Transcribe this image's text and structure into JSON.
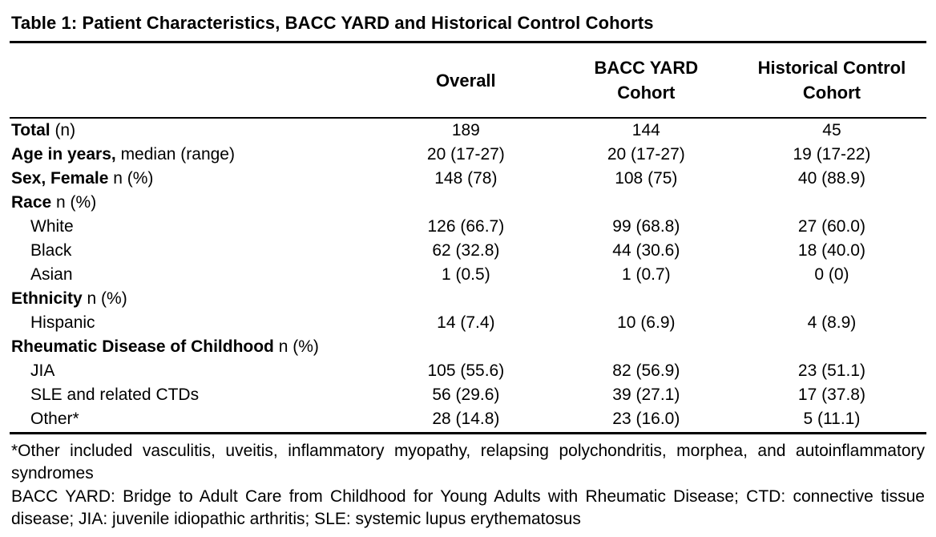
{
  "table": {
    "title": "Table 1: Patient Characteristics, BACC YARD and Historical Control Cohorts",
    "columns": [
      "Overall",
      "BACC YARD Cohort",
      "Historical Control Cohort"
    ],
    "rows": [
      {
        "bold": "Total",
        "rest": " (n)",
        "values": [
          "189",
          "144",
          "45"
        ]
      },
      {
        "bold": "Age in years,",
        "rest": " median (range)",
        "values": [
          "20 (17-27)",
          "20 (17-27)",
          "19 (17-22)"
        ]
      },
      {
        "bold": "Sex, Female",
        "rest": " n (%)",
        "values": [
          "148 (78)",
          "108 (75)",
          "40 (88.9)"
        ]
      },
      {
        "bold": "Race",
        "rest": " n (%)",
        "values": [
          "",
          "",
          ""
        ]
      },
      {
        "bold": "",
        "rest": "White",
        "values": [
          "126 (66.7)",
          "99 (68.8)",
          "27 (60.0)"
        ]
      },
      {
        "bold": "",
        "rest": "Black",
        "values": [
          "62 (32.8)",
          "44 (30.6)",
          "18 (40.0)"
        ]
      },
      {
        "bold": "",
        "rest": "Asian",
        "values": [
          "1 (0.5)",
          "1 (0.7)",
          "0 (0)"
        ]
      },
      {
        "bold": "Ethnicity",
        "rest": " n (%)",
        "values": [
          "",
          "",
          ""
        ]
      },
      {
        "bold": "",
        "rest": "Hispanic",
        "values": [
          "14 (7.4)",
          "10 (6.9)",
          "4 (8.9)"
        ]
      },
      {
        "bold": "Rheumatic Disease of Childhood",
        "rest": " n (%)",
        "values": [
          "",
          "",
          ""
        ]
      },
      {
        "bold": "",
        "rest": "JIA",
        "values": [
          "105 (55.6)",
          "82 (56.9)",
          "23 (51.1)"
        ]
      },
      {
        "bold": "",
        "rest": "SLE and related CTDs",
        "values": [
          "56 (29.6)",
          "39 (27.1)",
          "17 (37.8)"
        ]
      },
      {
        "bold": "",
        "rest": "Other*",
        "values": [
          "28 (14.8)",
          "23 (16.0)",
          "5 (11.1)"
        ]
      }
    ],
    "footnotes": [
      "*Other included vasculitis, uveitis, inflammatory myopathy, relapsing polychondritis, morphea, and autoinflammatory syndromes",
      "BACC YARD: Bridge to Adult Care from Childhood for Young Adults with Rheumatic Disease; CTD: connective tissue disease; JIA: juvenile idiopathic arthritis; SLE: systemic lupus erythematosus"
    ]
  }
}
